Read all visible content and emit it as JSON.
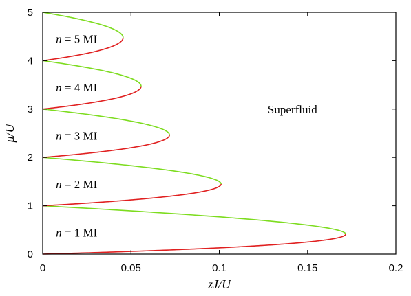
{
  "chart_data": {
    "type": "line",
    "xlabel": "zJ/U",
    "ylabel": "μ/U",
    "xlim": [
      0,
      0.2
    ],
    "ylim": [
      0,
      5
    ],
    "x_ticks": [
      "0",
      "0.05",
      "0.1",
      "0.15",
      "0.2"
    ],
    "y_ticks": [
      "0",
      "1",
      "2",
      "3",
      "4",
      "5"
    ],
    "grid": false,
    "colors": {
      "upper_boundary": "#7ddc1f",
      "lower_boundary": "#e02020"
    },
    "series": [
      {
        "n": 1,
        "lower": 0,
        "upper": 1,
        "tip_x": 0.1716,
        "tip_y": 0.414
      },
      {
        "n": 2,
        "lower": 1,
        "upper": 2,
        "tip_x": 0.101,
        "tip_y": 1.449
      },
      {
        "n": 3,
        "lower": 2,
        "upper": 3,
        "tip_x": 0.0718,
        "tip_y": 2.464
      },
      {
        "n": 4,
        "lower": 3,
        "upper": 4,
        "tip_x": 0.0557,
        "tip_y": 3.472
      },
      {
        "n": 5,
        "lower": 4,
        "upper": 5,
        "tip_x": 0.0455,
        "tip_y": 4.477
      }
    ],
    "annotations": [
      {
        "id": "mi1",
        "italic": "n",
        "rest": " = 1 MI",
        "x": 0.002,
        "y": 0.45
      },
      {
        "id": "mi2",
        "italic": "n",
        "rest": " = 2 MI",
        "x": 0.002,
        "y": 1.45
      },
      {
        "id": "mi3",
        "italic": "n",
        "rest": " = 3 MI",
        "x": 0.002,
        "y": 2.45
      },
      {
        "id": "mi4",
        "italic": "n",
        "rest": " = 4 MI",
        "x": 0.002,
        "y": 3.45
      },
      {
        "id": "mi5",
        "italic": "n",
        "rest": " = 5 MI",
        "x": 0.002,
        "y": 4.45
      },
      {
        "id": "sf",
        "italic": "",
        "rest": "Superfluid",
        "x": 0.122,
        "y": 3.0
      }
    ]
  }
}
